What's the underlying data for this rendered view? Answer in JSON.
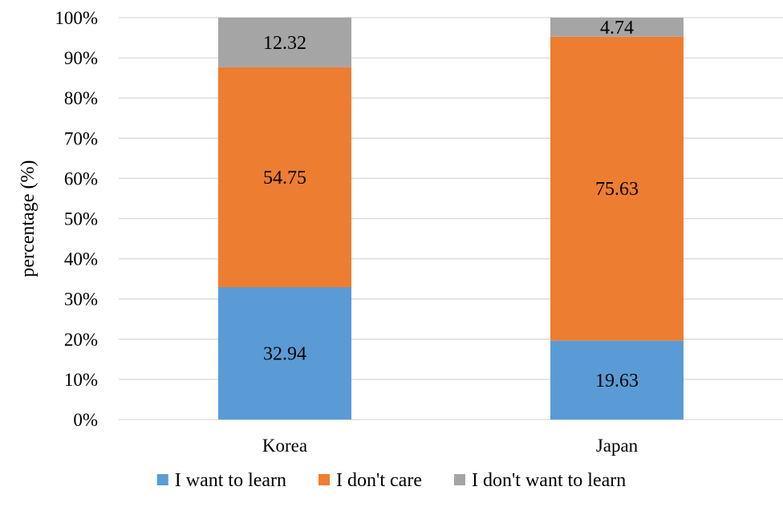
{
  "chart_data": {
    "type": "bar",
    "stacked": true,
    "categories": [
      "Korea",
      "Japan"
    ],
    "series": [
      {
        "name": "I want to learn",
        "values": [
          32.94,
          19.63
        ],
        "color": "#5b9bd5"
      },
      {
        "name": "I don't care",
        "values": [
          54.75,
          75.63
        ],
        "color": "#ed7d31"
      },
      {
        "name": "I don't want to learn",
        "values": [
          12.32,
          4.74
        ],
        "color": "#a5a5a5"
      }
    ],
    "title": "",
    "xlabel": "",
    "ylabel": "percentage (%)",
    "ylim": [
      0,
      100
    ],
    "yticks": [
      "0%",
      "10%",
      "20%",
      "30%",
      "40%",
      "50%",
      "60%",
      "70%",
      "80%",
      "90%",
      "100%"
    ],
    "grid": true,
    "legend_position": "bottom",
    "gridline_color": "#d9d9d9"
  }
}
